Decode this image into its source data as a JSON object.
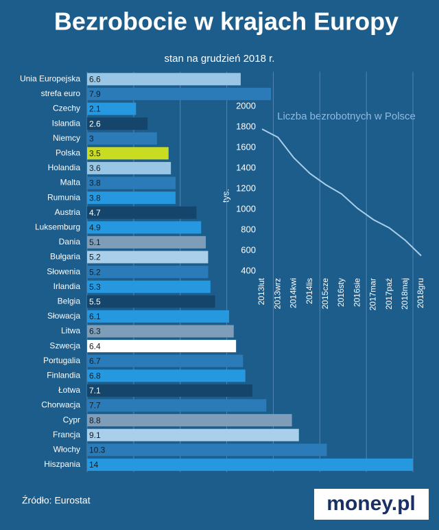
{
  "chart_data": [
    {
      "type": "hbar",
      "title": "Bezrobocie w krajach Europy",
      "subtitle": "stan na grudzień 2018 r.",
      "categories": [
        "Unia Europejska",
        "strefa euro",
        "Czechy",
        "Islandia",
        "Niemcy",
        "Polska",
        "Holandia",
        "Malta",
        "Rumunia",
        "Austria",
        "Luksemburg",
        "Dania",
        "Bułgaria",
        "Słowenia",
        "Irlandia",
        "Belgia",
        "Słowacja",
        "Litwa",
        "Szwecja",
        "Portugalia",
        "Finlandia",
        "Łotwa",
        "Chorwacja",
        "Cypr",
        "Francja",
        "Włochy",
        "Hiszpania"
      ],
      "values": [
        6.6,
        7.9,
        2.1,
        2.6,
        3,
        3.5,
        3.6,
        3.8,
        3.8,
        4.7,
        4.9,
        5.1,
        5.2,
        5.2,
        5.3,
        5.5,
        6.1,
        6.3,
        6.4,
        6.7,
        6.8,
        7.1,
        7.7,
        8.8,
        9.1,
        10.3,
        14
      ],
      "colors": [
        "#9ac6e6",
        "#2b7bb9",
        "#2598e0",
        "#16456b",
        "#2b7bb9",
        "#c9dc22",
        "#9ac6e6",
        "#2b7bb9",
        "#2598e0",
        "#16456b",
        "#2598e0",
        "#7d9db8",
        "#a9cfea",
        "#2b7bb9",
        "#2598e0",
        "#16456b",
        "#2598e0",
        "#7d9db8",
        "#ffffff",
        "#2b7bb9",
        "#2598e0",
        "#16456b",
        "#2b7bb9",
        "#7d9db8",
        "#a9cfea",
        "#2b7bb9",
        "#2598e0"
      ],
      "xlim": [
        0,
        14
      ],
      "xticks": [
        0,
        2,
        4,
        6,
        8,
        10,
        12,
        14
      ],
      "grid": true
    },
    {
      "type": "line",
      "title": "Liczba bezrobotnych w Polsce",
      "ylabel": "tys.",
      "categories": [
        "2013lut",
        "2013wrz",
        "2014kwi",
        "2014lis",
        "2015cze",
        "2016sty",
        "2016sie",
        "2017mar",
        "2017paź",
        "2018maj",
        "2018gru"
      ],
      "values": [
        1780,
        1700,
        1500,
        1350,
        1240,
        1150,
        1010,
        900,
        820,
        700,
        550
      ],
      "color": "#a9cfea",
      "ylim": [
        400,
        2000
      ],
      "yticks": [
        400,
        600,
        800,
        1000,
        1200,
        1400,
        1600,
        1800,
        2000
      ]
    }
  ],
  "footer": {
    "source": "Źródło: Eurostat",
    "logo": "money.pl"
  }
}
